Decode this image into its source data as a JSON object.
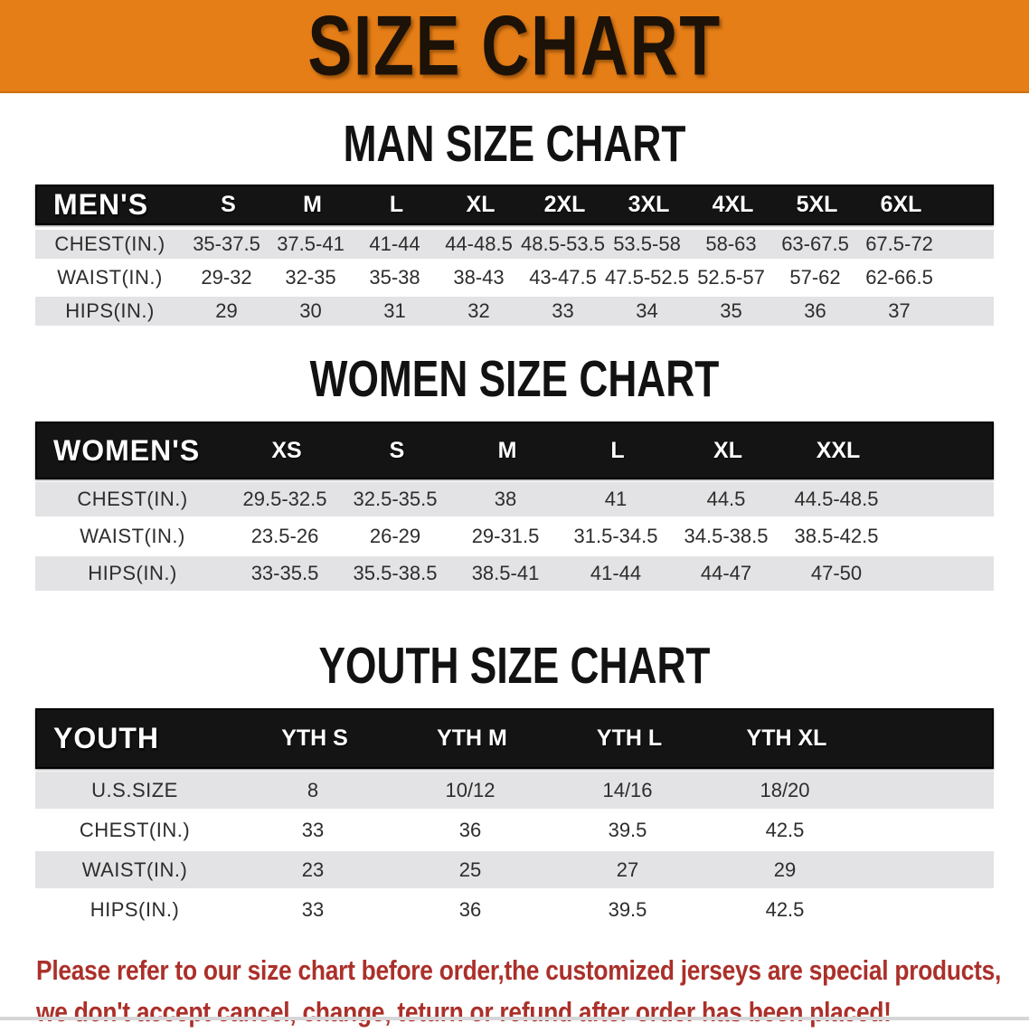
{
  "banner": {
    "title": "SIZE CHART",
    "bg_color": "#e67e17",
    "text_color": "#1c1208"
  },
  "sections": [
    {
      "heading": "MAN SIZE CHART",
      "table": {
        "header_label": "MEN'S",
        "columns": [
          "S",
          "M",
          "L",
          "XL",
          "2XL",
          "3XL",
          "4XL",
          "5XL",
          "6XL"
        ],
        "rows": [
          {
            "label": "CHEST(IN.)",
            "values": [
              "35-37.5",
              "37.5-41",
              "41-44",
              "44-48.5",
              "48.5-53.5",
              "53.5-58",
              "58-63",
              "63-67.5",
              "67.5-72"
            ]
          },
          {
            "label": "WAIST(IN.)",
            "values": [
              "29-32",
              "32-35",
              "35-38",
              "38-43",
              "43-47.5",
              "47.5-52.5",
              "52.5-57",
              "57-62",
              "62-66.5"
            ]
          },
          {
            "label": "HIPS(IN.)",
            "values": [
              "29",
              "30",
              "31",
              "32",
              "33",
              "34",
              "35",
              "36",
              "37"
            ]
          }
        ]
      }
    },
    {
      "heading": "WOMEN SIZE CHART",
      "table": {
        "header_label": "WOMEN'S",
        "columns": [
          "XS",
          "S",
          "M",
          "L",
          "XL",
          "XXL"
        ],
        "rows": [
          {
            "label": "CHEST(IN.)",
            "values": [
              "29.5-32.5",
              "32.5-35.5",
              "38",
              "41",
              "44.5",
              "44.5-48.5"
            ]
          },
          {
            "label": "WAIST(IN.)",
            "values": [
              "23.5-26",
              "26-29",
              "29-31.5",
              "31.5-34.5",
              "34.5-38.5",
              "38.5-42.5"
            ]
          },
          {
            "label": "HIPS(IN.)",
            "values": [
              "33-35.5",
              "35.5-38.5",
              "38.5-41",
              "41-44",
              "44-47",
              "47-50"
            ]
          }
        ]
      }
    },
    {
      "heading": "YOUTH SIZE CHART",
      "table": {
        "header_label": "YOUTH",
        "columns": [
          "YTH S",
          "YTH M",
          "YTH L",
          "YTH XL"
        ],
        "rows": [
          {
            "label": "U.S.SIZE",
            "values": [
              "8",
              "10/12",
              "14/16",
              "18/20"
            ]
          },
          {
            "label": "CHEST(IN.)",
            "values": [
              "33",
              "36",
              "39.5",
              "42.5"
            ]
          },
          {
            "label": "WAIST(IN.)",
            "values": [
              "23",
              "25",
              "27",
              "29"
            ]
          },
          {
            "label": "HIPS(IN.)",
            "values": [
              "33",
              "36",
              "39.5",
              "42.5"
            ]
          }
        ]
      }
    }
  ],
  "disclaimer": {
    "lines": [
      "Please refer to our size chart before order,the customized jerseys are special products,",
      "we don't accept cancel, change, teturn or refund after order has been placed!"
    ],
    "text_color": "#ab302a"
  },
  "colors": {
    "header_bar": "#141414",
    "row_stripe": "#e3e3e5",
    "row_text": "#2d2d2d"
  }
}
